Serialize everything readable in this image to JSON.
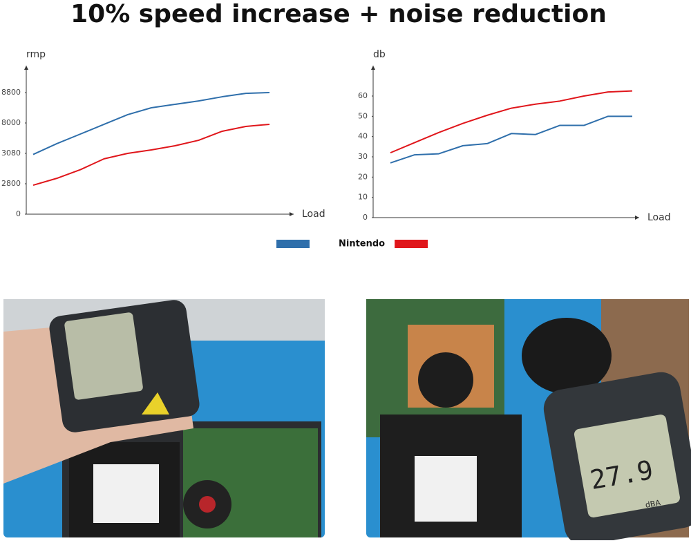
{
  "title": "10% speed increase + noise reduction",
  "chart_data": [
    {
      "type": "line",
      "ylabel": "rmp",
      "xlabel": "Load",
      "tick_spacing": "equal",
      "ylim": [
        0,
        8800
      ],
      "yticks": [
        0,
        2800,
        3080,
        8000,
        8800
      ],
      "series": [
        {
          "color": "#2f6fab",
          "values": [
            3070,
            4650,
            6210,
            7780,
            8220,
            8400,
            8490,
            8580,
            8690,
            8780,
            8800
          ]
        },
        {
          "name": "Nintendo",
          "color": "#e0161b",
          "values": [
            2670,
            2850,
            2930,
            3030,
            3080,
            3640,
            4310,
            5200,
            6660,
            7440,
            7780
          ]
        }
      ]
    },
    {
      "type": "line",
      "ylabel": "db",
      "xlabel": "Load",
      "ylim": [
        0,
        75
      ],
      "yticks": [
        0,
        10,
        20,
        30,
        40,
        50,
        60
      ],
      "series": [
        {
          "color": "#2f6fab",
          "values": [
            27,
            31,
            31.5,
            35.5,
            36.5,
            41.5,
            41,
            45.5,
            45.5,
            50,
            50
          ]
        },
        {
          "name": "Nintendo",
          "color": "#e0161b",
          "values": [
            32,
            37,
            42,
            46.5,
            50.5,
            54,
            56,
            57.5,
            60,
            62,
            62.5
          ]
        }
      ]
    }
  ],
  "meter_display": "27.9",
  "meter_unit": "dBA"
}
